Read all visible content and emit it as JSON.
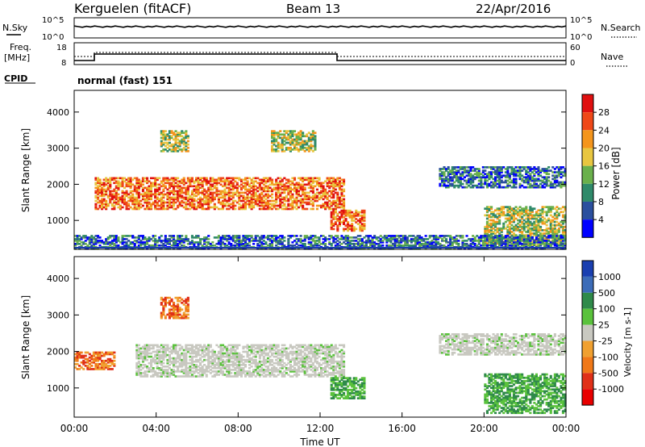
{
  "header": {
    "title": "Kerguelen (fitACF)",
    "beam": "Beam 13",
    "date": "22/Apr/2016"
  },
  "noise_panel": {
    "left_label": "N.Sky",
    "right_label": "N.Search",
    "left_ticks": [
      "10^5",
      "10^0"
    ],
    "right_ticks": [
      "10^5",
      "10^0"
    ]
  },
  "freq_panel": {
    "left_label_1": "Freq.",
    "left_label_2": "[MHz]",
    "right_label": "Nave",
    "left_ticks": [
      "18",
      "8"
    ],
    "right_ticks": [
      "60",
      "0"
    ],
    "cpid_label": "CPID",
    "cpid_text": "normal (fast) 151"
  },
  "chart_data": [
    {
      "type": "heatmap",
      "name": "power",
      "ylabel": "Slant Range [km]",
      "ylim": [
        200,
        4600
      ],
      "yticks": [
        "1000",
        "2000",
        "3000",
        "4000"
      ],
      "colorbar": {
        "label": "Power [dB]",
        "ticks": [
          "4",
          "8",
          "12",
          "16",
          "20",
          "24",
          "28"
        ],
        "colors": [
          "#0000ff",
          "#2b4f9e",
          "#2f8a6a",
          "#6ab04c",
          "#e8c640",
          "#f4951c",
          "#ef4818",
          "#e01010"
        ]
      },
      "echo_regions": [
        {
          "t0": 1.0,
          "t1": 13.2,
          "r0": 1300,
          "r1": 2200,
          "level": "high"
        },
        {
          "t0": 4.2,
          "t1": 5.6,
          "r0": 2900,
          "r1": 3500,
          "level": "medium"
        },
        {
          "t0": 9.6,
          "t1": 11.8,
          "r0": 2900,
          "r1": 3500,
          "level": "medium"
        },
        {
          "t0": 12.5,
          "t1": 14.2,
          "r0": 700,
          "r1": 1300,
          "level": "high"
        },
        {
          "t0": 17.8,
          "t1": 24.0,
          "r0": 1900,
          "r1": 2500,
          "level": "low"
        },
        {
          "t0": 20.0,
          "t1": 24.0,
          "r0": 300,
          "r1": 1400,
          "level": "medium"
        },
        {
          "t0": 0.0,
          "t1": 24.0,
          "r0": 200,
          "r1": 600,
          "level": "low"
        }
      ]
    },
    {
      "type": "heatmap",
      "name": "velocity",
      "ylabel": "Slant Range [km]",
      "ylim": [
        200,
        4600
      ],
      "yticks": [
        "1000",
        "2000",
        "3000",
        "4000"
      ],
      "xlabel": "Time UT",
      "xticks": [
        "00:00",
        "04:00",
        "08:00",
        "12:00",
        "16:00",
        "20:00",
        "00:00"
      ],
      "colorbar": {
        "label": "Velocity [m s-1]",
        "ticks": [
          "1000",
          "500",
          "100",
          "25",
          "-25",
          "-100",
          "-500",
          "-1000"
        ],
        "colors": [
          "#1a3fb0",
          "#3c6cb8",
          "#2f8a4a",
          "#5ac23c",
          "#c8c8c0",
          "#f0a030",
          "#f07818",
          "#e03018",
          "#e80000"
        ]
      },
      "echo_regions": [
        {
          "t0": 0.0,
          "t1": 2.0,
          "r0": 1500,
          "r1": 2000,
          "level": "negative"
        },
        {
          "t0": 3.0,
          "t1": 13.2,
          "r0": 1300,
          "r1": 2200,
          "level": "ground"
        },
        {
          "t0": 4.2,
          "t1": 5.6,
          "r0": 2900,
          "r1": 3500,
          "level": "negative"
        },
        {
          "t0": 12.5,
          "t1": 14.2,
          "r0": 700,
          "r1": 1300,
          "level": "positive"
        },
        {
          "t0": 17.8,
          "t1": 24.0,
          "r0": 1900,
          "r1": 2500,
          "level": "ground"
        },
        {
          "t0": 20.0,
          "t1": 24.0,
          "r0": 300,
          "r1": 1400,
          "level": "positive"
        }
      ]
    }
  ],
  "footer": {
    "time_label": "Time UT"
  }
}
